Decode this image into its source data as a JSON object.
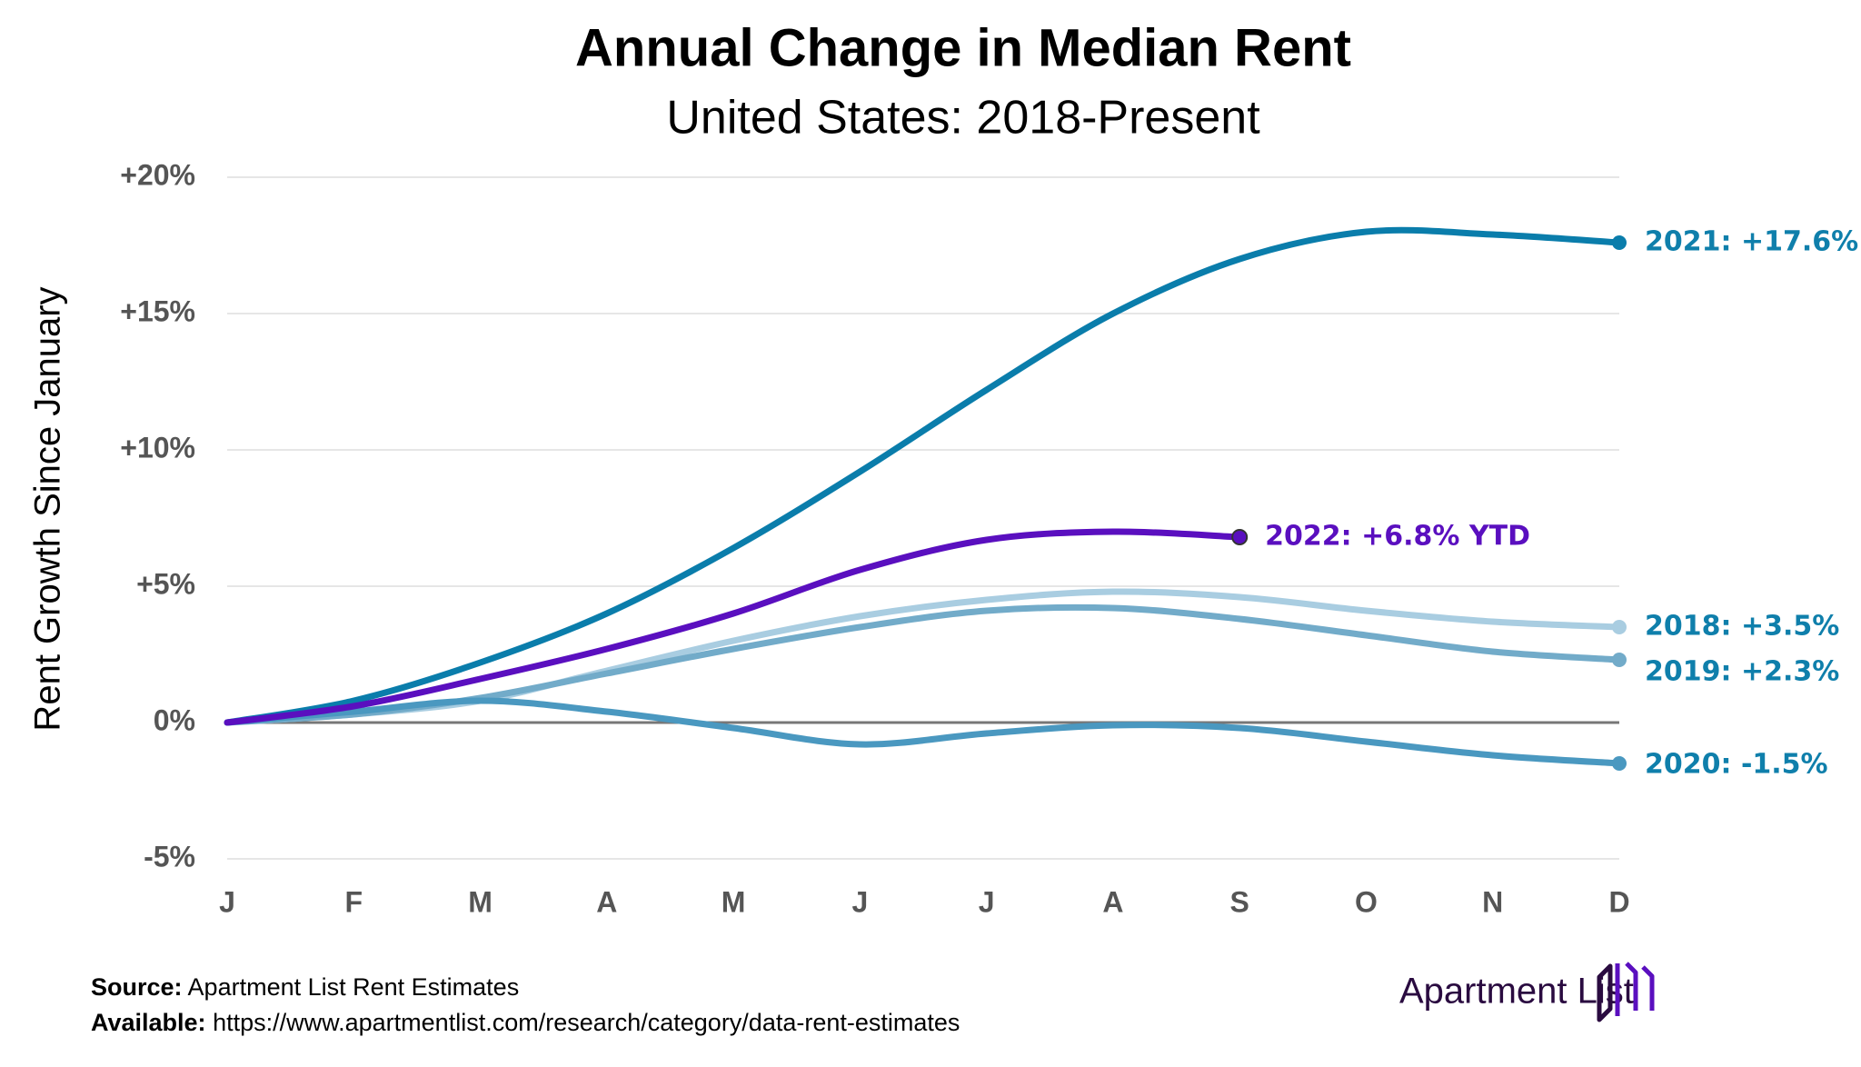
{
  "chart_data": {
    "type": "line",
    "title": "Annual Change in Median Rent",
    "subtitle": "United States: 2018-Present",
    "y_label": "Rent Growth Since January",
    "categories": [
      "J",
      "F",
      "M",
      "A",
      "M",
      "J",
      "J",
      "A",
      "S",
      "O",
      "N",
      "D"
    ],
    "ylim": [
      -5,
      20
    ],
    "yticks": [
      {
        "value": -5,
        "label": "-5%"
      },
      {
        "value": 0,
        "label": "0%"
      },
      {
        "value": 5,
        "label": "+5%"
      },
      {
        "value": 10,
        "label": "+10%"
      },
      {
        "value": 15,
        "label": "+15%"
      },
      {
        "value": 20,
        "label": "+20%"
      }
    ],
    "grid": true,
    "series": [
      {
        "name": "2018: +3.5%",
        "color": "#a9cde1",
        "label_color": "#0f7fab",
        "values": [
          0,
          0.3,
          0.8,
          1.9,
          3.0,
          3.9,
          4.5,
          4.8,
          4.6,
          4.1,
          3.7,
          3.5
        ]
      },
      {
        "name": "2019: +2.3%",
        "color": "#72abc9",
        "label_color": "#0f7fab",
        "values": [
          0,
          0.3,
          0.9,
          1.8,
          2.7,
          3.5,
          4.1,
          4.2,
          3.8,
          3.2,
          2.6,
          2.3
        ]
      },
      {
        "name": "2020: -1.5%",
        "color": "#4a98c0",
        "label_color": "#0f7fab",
        "values": [
          0,
          0.4,
          0.8,
          0.4,
          -0.2,
          -0.8,
          -0.4,
          -0.1,
          -0.2,
          -0.7,
          -1.2,
          -1.5
        ]
      },
      {
        "name": "2021: +17.6%",
        "color": "#0a7dab",
        "label_color": "#0f7fab",
        "values": [
          0,
          0.8,
          2.2,
          4.0,
          6.4,
          9.2,
          12.2,
          15.0,
          17.0,
          18.0,
          17.9,
          17.6
        ]
      },
      {
        "name": "2022: +6.8% YTD",
        "color": "#5a0fbf",
        "label_color": "#5a0fbf",
        "values": [
          0,
          0.6,
          1.6,
          2.7,
          4.0,
          5.6,
          6.7,
          7.0,
          6.8,
          null,
          null,
          null
        ]
      }
    ],
    "source": {
      "label": "Source:",
      "text": "Apartment List Rent Estimates"
    },
    "available": {
      "label": "Available:",
      "text": "https://www.apartmentlist.com/research/category/data-rent-estimates"
    },
    "brand": "Apartment List"
  }
}
